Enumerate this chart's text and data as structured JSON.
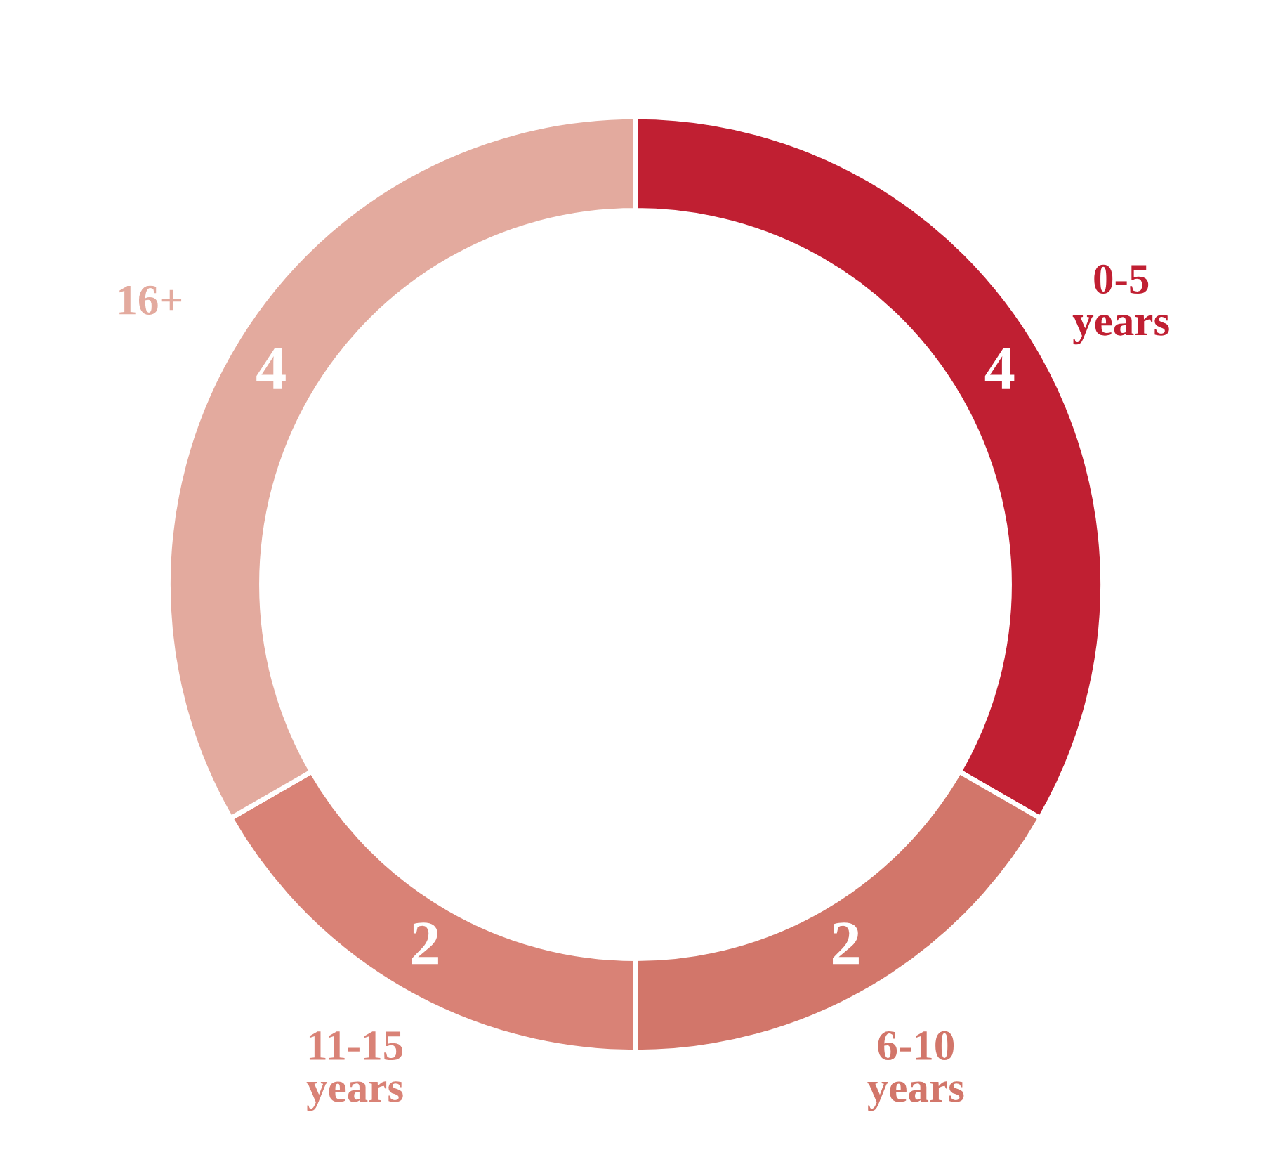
{
  "chart_data": {
    "type": "donut",
    "categories": [
      "0-5\nyears",
      "6-10\nyears",
      "11-15\nyears",
      "16+"
    ],
    "values": [
      4,
      2,
      2,
      4
    ],
    "colors": [
      "#c01f32",
      "#d2766a",
      "#d98276",
      "#e3aa9e"
    ],
    "data_labels": true,
    "legend": false
  }
}
